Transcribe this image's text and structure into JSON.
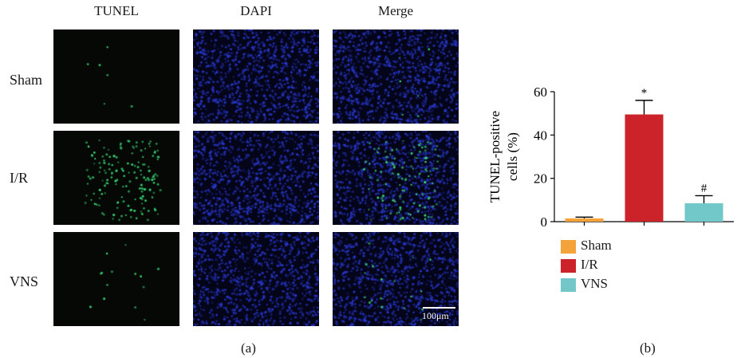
{
  "micrograph": {
    "columns": [
      "TUNEL",
      "DAPI",
      "Merge"
    ],
    "rows": [
      "Sham",
      "I/R",
      "VNS"
    ],
    "scale_bar": "100μm",
    "label": "(a)"
  },
  "colors": {
    "sham": "#f4a23a",
    "ir": "#cc2229",
    "vns": "#72c8c8",
    "dapi": "#2a3bd6",
    "tunel": "#3de07a"
  },
  "chart_data": {
    "type": "bar",
    "label": "(b)",
    "categories": [
      "Sham",
      "I/R",
      "VNS"
    ],
    "values": [
      1.5,
      49.5,
      8.5
    ],
    "errors": [
      0.6,
      6.5,
      3.5
    ],
    "annotations": [
      "",
      "*",
      "#"
    ],
    "ylabel_line1": "TUNEL-positive",
    "ylabel_line2": "cells (%)",
    "yticks": [
      0,
      20,
      40,
      60
    ],
    "ylim": [
      0,
      60
    ],
    "legend": [
      "Sham",
      "I/R",
      "VNS"
    ]
  }
}
